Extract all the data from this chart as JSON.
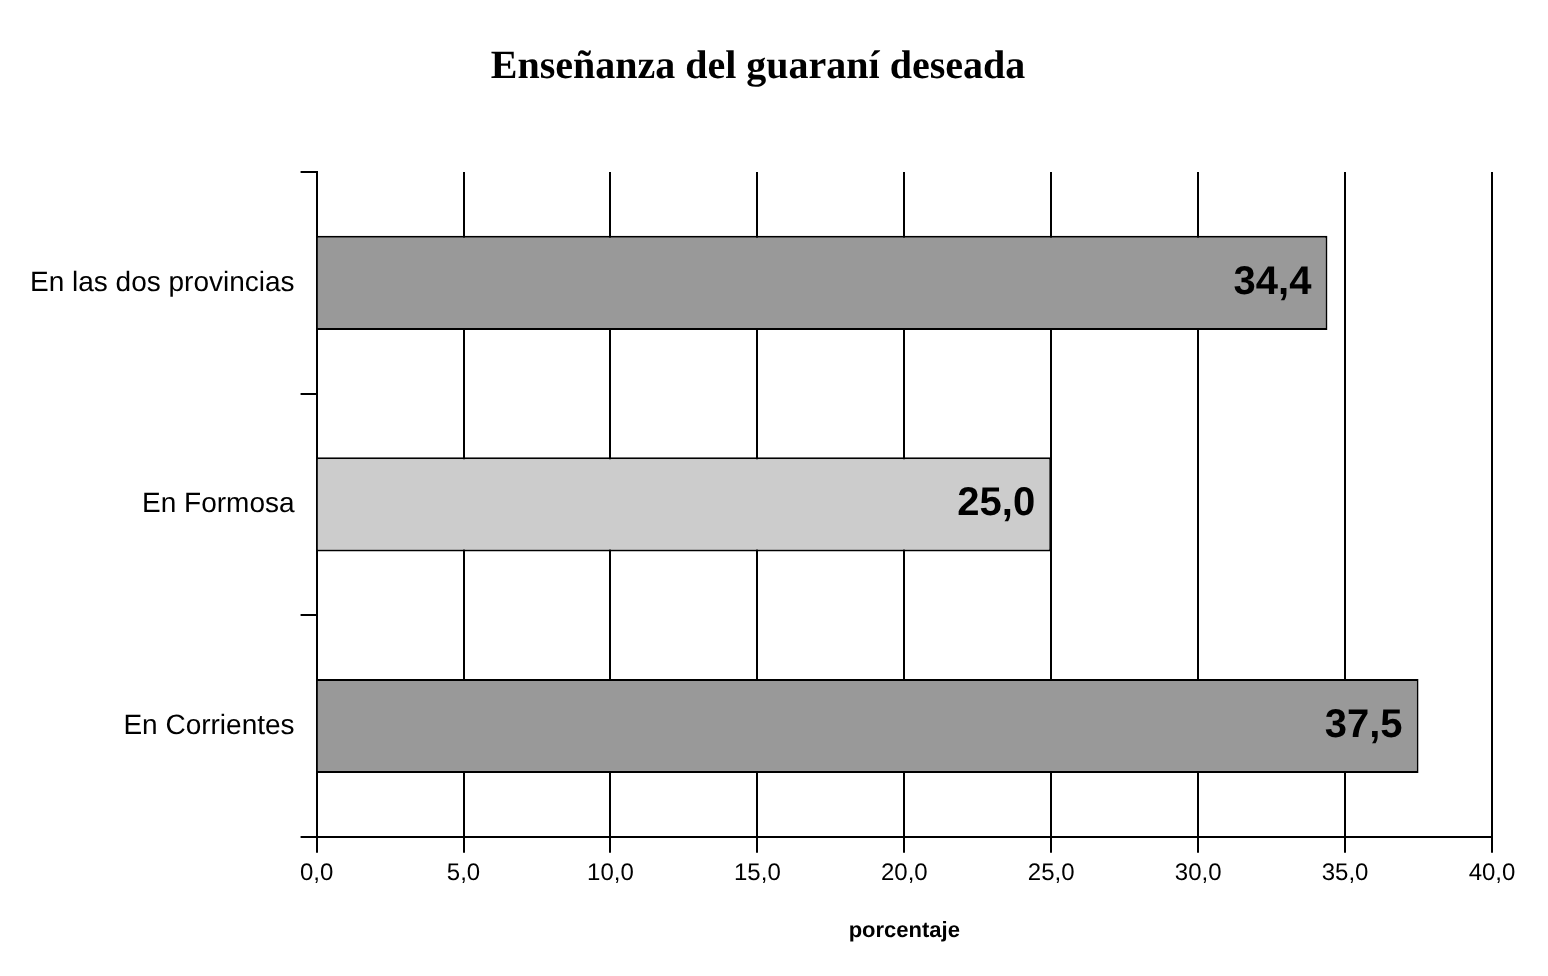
{
  "chart_data": {
    "type": "bar",
    "orientation": "horizontal",
    "title": "Enseñanza del guaraní deseada",
    "xlabel": "porcentaje",
    "categories": [
      "En las dos provincias",
      "En Formosa",
      "En Corrientes"
    ],
    "values": [
      34.4,
      25.0,
      37.5
    ],
    "colors": [
      "#999999",
      "#cccccc",
      "#999999"
    ],
    "value_labels": [
      "34,4",
      "25,0",
      "37,5"
    ],
    "xlim": [
      0,
      40
    ],
    "xticks": [
      {
        "value": 0,
        "label": "0,0"
      },
      {
        "value": 5,
        "label": "5,0"
      },
      {
        "value": 10,
        "label": "10,0"
      },
      {
        "value": 15,
        "label": "15,0"
      },
      {
        "value": 20,
        "label": "20,0"
      },
      {
        "value": 25,
        "label": "25,0"
      },
      {
        "value": 30,
        "label": "30,0"
      },
      {
        "value": 35,
        "label": "35,0"
      },
      {
        "value": 40,
        "label": "40,0"
      }
    ],
    "grid": "x",
    "legend": false
  }
}
